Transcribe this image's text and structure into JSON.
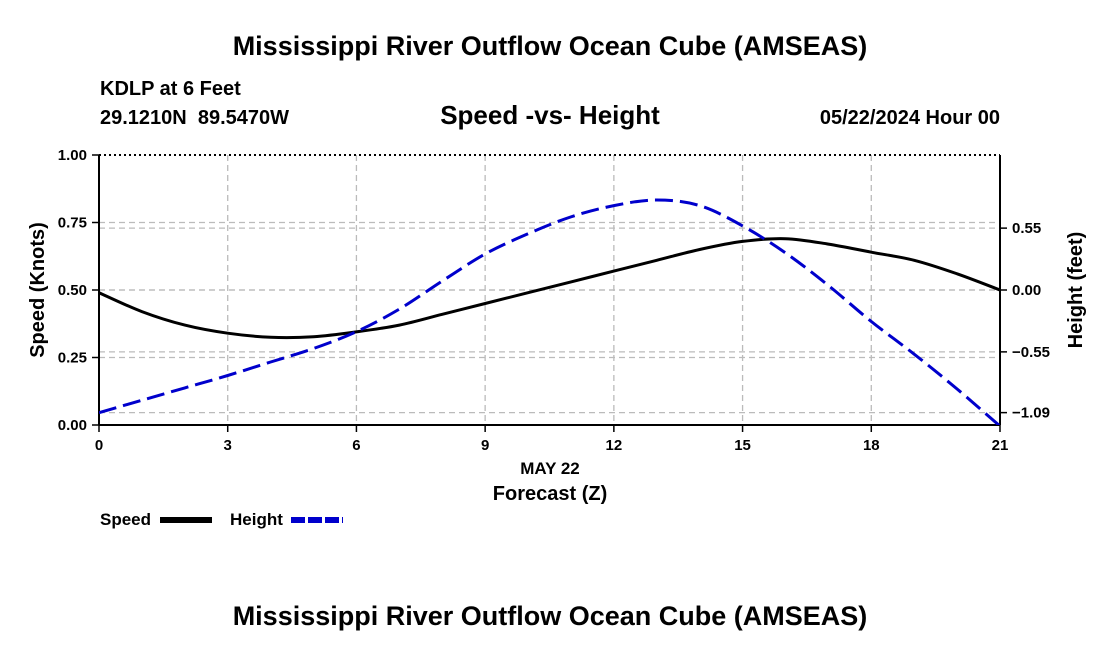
{
  "page": {
    "title": "Mississippi River Outflow Ocean Cube (AMSEAS)",
    "footer_title": "Mississippi River Outflow Ocean Cube (AMSEAS)"
  },
  "station": {
    "name": "KDLP at 6 Feet",
    "coordinates": "29.1210N  89.5470W",
    "datetime": "05/22/2024 Hour 00"
  },
  "chart_data": {
    "type": "line",
    "title": "Speed -vs- Height",
    "xlabel": "Forecast (Z)",
    "xdate_label": "MAY 22",
    "ylabel": "Speed (Knots)",
    "y2label": "Height (feet)",
    "xlim": [
      0,
      21
    ],
    "ylim": [
      0,
      1
    ],
    "y2lim": [
      -1.2,
      1.2
    ],
    "x_ticks": [
      "0",
      "3",
      "6",
      "9",
      "12",
      "15",
      "18",
      "21"
    ],
    "y_ticks": [
      "0.00",
      "0.25",
      "0.50",
      "0.75",
      "1.00"
    ],
    "y2_ticks": [
      "0.55",
      "0.00",
      "−0.55",
      "−1.09"
    ],
    "y2_tick_values": [
      0.55,
      0.0,
      -0.55,
      -1.09
    ],
    "grid": true,
    "series": [
      {
        "name": "Speed",
        "axis": "left",
        "color": "#000000",
        "style": "solid",
        "x": [
          0,
          1,
          2,
          3,
          4,
          5,
          6,
          7,
          8,
          9,
          10,
          11,
          12,
          13,
          14,
          15,
          16,
          17,
          18,
          19,
          20,
          21
        ],
        "values": [
          0.49,
          0.42,
          0.37,
          0.34,
          0.325,
          0.327,
          0.345,
          0.37,
          0.41,
          0.45,
          0.49,
          0.53,
          0.57,
          0.61,
          0.65,
          0.68,
          0.69,
          0.67,
          0.64,
          0.61,
          0.56,
          0.5
        ]
      },
      {
        "name": "Height",
        "axis": "right",
        "color": "#0000cc",
        "style": "dashed",
        "x": [
          0,
          1,
          2,
          3,
          4,
          5,
          6,
          7,
          8,
          9,
          10,
          11,
          12,
          13,
          14,
          15,
          16,
          17,
          18,
          19,
          20,
          21
        ],
        "values": [
          -1.09,
          -0.98,
          -0.87,
          -0.76,
          -0.64,
          -0.52,
          -0.37,
          -0.17,
          0.08,
          0.32,
          0.5,
          0.65,
          0.75,
          0.8,
          0.75,
          0.57,
          0.33,
          0.04,
          -0.28,
          -0.57,
          -0.88,
          -1.21
        ]
      }
    ],
    "legend": {
      "position": "bottom-left",
      "items": [
        {
          "label": "Speed",
          "color": "#000000",
          "style": "solid"
        },
        {
          "label": "Height",
          "color": "#0000cc",
          "style": "dashed"
        }
      ]
    }
  }
}
